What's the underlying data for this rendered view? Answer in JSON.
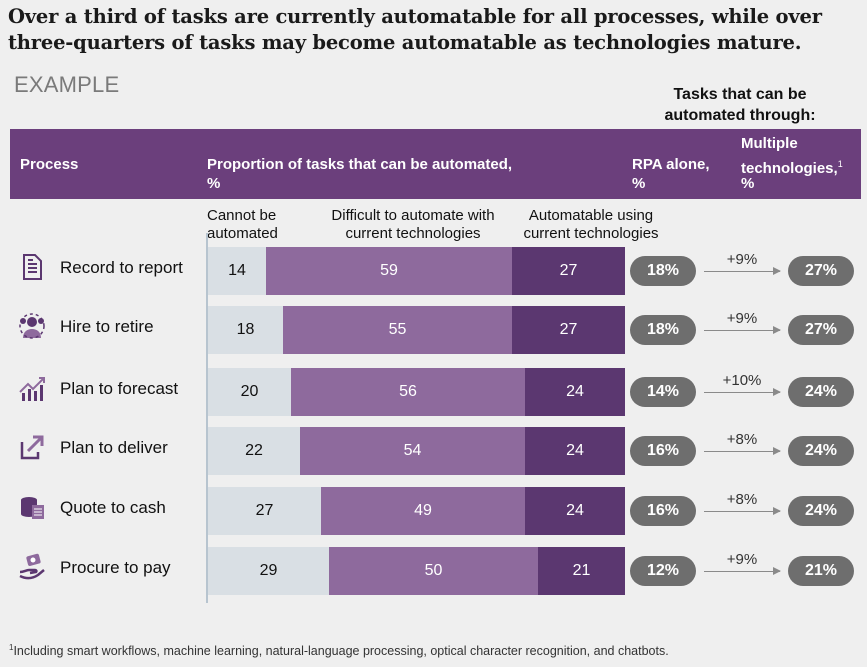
{
  "headline": "Over a third of tasks are currently automatable for all processes, while over three-quarters of tasks may become automatable as technologies mature.",
  "example_label": "EXAMPLE",
  "tasks_header": {
    "line1": "Tasks that can be",
    "line2": "automated through:"
  },
  "header": {
    "process": "Process",
    "proportion_line1": "Proportion of tasks that can be automated,",
    "proportion_line2": "%",
    "rpa_line1": "RPA alone,",
    "rpa_line2": "%",
    "multi_line1": "Multiple",
    "multi_line2": "technologies,",
    "multi_sup": "1",
    "multi_line3": "%"
  },
  "segment_labels": {
    "cannot_l1": "Cannot be",
    "cannot_l2": "automated",
    "difficult_l1": "Difficult to automate with",
    "difficult_l2": "current technologies",
    "automatable_l1": "Automatable using",
    "automatable_l2": "current technologies"
  },
  "colors": {
    "header": "#6b3f7c",
    "cannot": "#d9dfe4",
    "difficult": "#8e6a9d",
    "automatable": "#5b3770",
    "pill": "#6e6e6e"
  },
  "chart_data": {
    "type": "bar",
    "orientation": "horizontal-stacked",
    "categories": [
      "Record to report",
      "Hire to retire",
      "Plan to forecast",
      "Plan to deliver",
      "Quote to cash",
      "Procure to pay"
    ],
    "icons": [
      "document-icon",
      "people-icon",
      "growth-chart-icon",
      "share-arrow-icon",
      "coins-icon",
      "hand-money-icon"
    ],
    "series": [
      {
        "name": "Cannot be automated",
        "values": [
          14,
          18,
          20,
          22,
          27,
          29
        ]
      },
      {
        "name": "Difficult to automate with current technologies",
        "values": [
          59,
          55,
          56,
          54,
          49,
          50
        ]
      },
      {
        "name": "Automatable using current technologies",
        "values": [
          27,
          27,
          24,
          24,
          24,
          21
        ]
      }
    ],
    "rpa_alone": [
      "18%",
      "18%",
      "14%",
      "16%",
      "16%",
      "12%"
    ],
    "delta": [
      "+9%",
      "+9%",
      "+10%",
      "+8%",
      "+8%",
      "+9%"
    ],
    "multiple_technologies": [
      "27%",
      "27%",
      "24%",
      "24%",
      "24%",
      "21%"
    ]
  },
  "footnote": {
    "sup": "1",
    "text": "Including smart workflows, machine learning, natural-language processing, optical character recognition, and chatbots."
  }
}
